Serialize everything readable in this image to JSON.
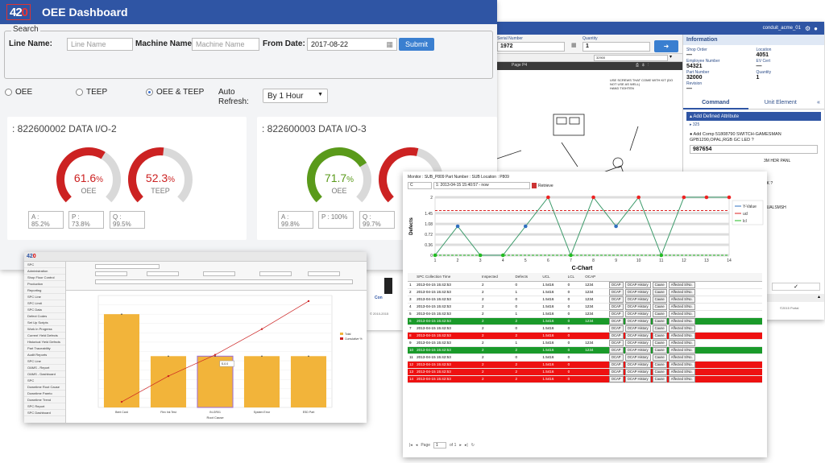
{
  "oee": {
    "logo": {
      "main": "42",
      "accent": "0"
    },
    "title": "OEE Dashboard",
    "search": {
      "legend": "Search",
      "line_label": "Line Name:",
      "line_placeholder": "Line Name",
      "machine_label": "Machine Name:",
      "machine_placeholder": "Machine Name",
      "from_label": "From Date:",
      "from_value": "2017-08-22",
      "submit": "Submit"
    },
    "radios": [
      {
        "label": "OEE",
        "checked": false
      },
      {
        "label": "TEEP",
        "checked": false
      },
      {
        "label": "OEE & TEEP",
        "checked": true
      }
    ],
    "auto_refresh_label": "Auto Refresh:",
    "auto_refresh_value": "By 1 Hour",
    "cards": [
      {
        "title": ": 822600002 DATA I/O-2",
        "gauges": [
          {
            "value": "61.6",
            "unit": "%",
            "label": "OEE",
            "fraction": 0.616,
            "color": "#cc2222"
          },
          {
            "value": "52.3",
            "unit": "%",
            "label": "TEEP",
            "fraction": 0.523,
            "color": "#cc2222"
          }
        ],
        "metrics": [
          "A :\n85.2%",
          "P :\n73.8%",
          "Q :\n99.5%"
        ]
      },
      {
        "title": ": 822600003 DATA I/O-3",
        "gauges": [
          {
            "value": "71.7",
            "unit": "%",
            "label": "OEE",
            "fraction": 0.717,
            "color": "#5a9a1a"
          },
          {
            "value": "",
            "unit": "",
            "label": "",
            "fraction": 0.55,
            "color": "#cc2222"
          }
        ],
        "metrics": [
          "A :\n99.8%",
          "P : 100%",
          "Q :\n99.7%"
        ]
      }
    ]
  },
  "mes": {
    "user": "conduit_acme_01",
    "serial_label": "Serial Number",
    "serial_value": "1972",
    "quantity_label": "Quantity",
    "quantity_value": "1",
    "doc_field": "32900",
    "page_label": "Page",
    "page_value": "P4",
    "doc_note": "USE SCREWS THAT COME WITH KIT (DO NOT USE AS WELL)\nHAND TIGHTEN",
    "info_title": "Information",
    "info": [
      {
        "k": "Shop Order",
        "v": "—"
      },
      {
        "k": "Location",
        "v": "4051"
      },
      {
        "k": "Employee Number",
        "v": "54321"
      },
      {
        "k": "EV Cert",
        "v": "—"
      },
      {
        "k": "Part Number",
        "v": "32000"
      },
      {
        "k": "Quantity",
        "v": "1"
      },
      {
        "k": "Revision",
        "v": "—"
      }
    ],
    "tab_command": "Command",
    "tab_unit": "Unit Element",
    "add_attr": "Add Defined Attribute",
    "attr_item": "325",
    "add_comp": "Add Comp 51808790 SWITCH-GAMESMAN GPB1290,OPAL,RGB GC LED ?",
    "comp_value": "987654",
    "frag1": "3M HDR PANL",
    "frag2": "CK ?",
    "frag3": "DUALSMSH",
    "footer": "©2015 Portal",
    "left_footer": "© 2010-2015"
  },
  "pareto": {
    "logo_main": "42",
    "logo_accent": "0",
    "tree": [
      "SPC",
      "Administration",
      "Shop Floor Control",
      "Production",
      "Reporting",
      "SPC Line",
      "SPC Limit",
      "SPC Data",
      "Defect Codes",
      "Set Up Scripts",
      "Work in Progress",
      "Current Yield Defects",
      "Historical Yield Defects",
      "Part Traceability",
      "Audit Reports",
      "SPC Line",
      "OAMS - Report",
      "OAMS - Dashboard",
      "SPC",
      "Downtime Root Cause",
      "Downtime Pareto",
      "Downtime Trend",
      "SPC Report",
      "SPC Dashboard"
    ],
    "tooltip": "S-0.0",
    "legend": [
      "Total",
      "Cumulative %"
    ],
    "xlabel": "Root Cause"
  },
  "cchart": {
    "monitor_line": "Monitor : SUB_P809   Part Number : SUB   Location : P809",
    "select_c": "C",
    "range": "1: 2013-04-15 15:40:57 - now",
    "retrieve": "Retrieve",
    "legend": [
      "Y-Value",
      "ucl",
      "lcl"
    ],
    "title": "C-Chart",
    "ylabel": "Defects",
    "columns": [
      "SPC Collection Time",
      "Inspected",
      "Defects",
      "UCL",
      "LCL",
      "OCAP"
    ],
    "rows": [
      {
        "n": "1",
        "time": "2013-04-15 15:42:53",
        "insp": "2",
        "def": "0",
        "ucl": "1.5416",
        "lcl": "0",
        "ocap": "1234",
        "style": ""
      },
      {
        "n": "2",
        "time": "2013-04-15 15:42:53",
        "insp": "2",
        "def": "1",
        "ucl": "1.5416",
        "lcl": "0",
        "ocap": "1234",
        "style": ""
      },
      {
        "n": "3",
        "time": "2013-04-15 15:42:53",
        "insp": "2",
        "def": "0",
        "ucl": "1.5416",
        "lcl": "0",
        "ocap": "1234",
        "style": ""
      },
      {
        "n": "4",
        "time": "2013-04-15 15:42:53",
        "insp": "2",
        "def": "0",
        "ucl": "1.5416",
        "lcl": "0",
        "ocap": "1234",
        "style": ""
      },
      {
        "n": "5",
        "time": "2013-04-15 15:42:53",
        "insp": "2",
        "def": "1",
        "ucl": "1.5416",
        "lcl": "0",
        "ocap": "1234",
        "style": ""
      },
      {
        "n": "6",
        "time": "2013-04-15 15:42:53",
        "insp": "2",
        "def": "2",
        "ucl": "1.5416",
        "lcl": "0",
        "ocap": "1234",
        "style": "green"
      },
      {
        "n": "7",
        "time": "2013-04-15 15:42:53",
        "insp": "2",
        "def": "0",
        "ucl": "1.5416",
        "lcl": "0",
        "ocap": "",
        "style": ""
      },
      {
        "n": "8",
        "time": "2013-04-15 15:42:53",
        "insp": "2",
        "def": "2",
        "ucl": "1.5416",
        "lcl": "0",
        "ocap": "",
        "style": "red"
      },
      {
        "n": "9",
        "time": "2013-04-15 15:42:53",
        "insp": "2",
        "def": "1",
        "ucl": "1.5416",
        "lcl": "0",
        "ocap": "1234",
        "style": ""
      },
      {
        "n": "10",
        "time": "2013-04-15 15:42:53",
        "insp": "2",
        "def": "2",
        "ucl": "1.5416",
        "lcl": "0",
        "ocap": "1234",
        "style": "green"
      },
      {
        "n": "11",
        "time": "2013-04-15 15:42:53",
        "insp": "2",
        "def": "0",
        "ucl": "1.5416",
        "lcl": "0",
        "ocap": "",
        "style": ""
      },
      {
        "n": "12",
        "time": "2013-04-15 15:42:53",
        "insp": "2",
        "def": "2",
        "ucl": "1.5416",
        "lcl": "0",
        "ocap": "",
        "style": "red"
      },
      {
        "n": "13",
        "time": "2013-04-15 15:42:53",
        "insp": "2",
        "def": "2",
        "ucl": "1.5416",
        "lcl": "0",
        "ocap": "",
        "style": "red"
      },
      {
        "n": "14",
        "time": "2013-04-15 15:42:53",
        "insp": "2",
        "def": "2",
        "ucl": "1.5416",
        "lcl": "0",
        "ocap": "",
        "style": "red"
      }
    ],
    "actions": [
      "OCAP",
      "OCAP History",
      "Cause",
      "Affected S/No."
    ],
    "pager_page": "Page",
    "pager_value": "1",
    "pager_of": "of 1"
  },
  "chart_data": [
    {
      "type": "line",
      "title": "C-Chart",
      "xlabel": "",
      "ylabel": "Defects",
      "x": [
        1,
        2,
        3,
        4,
        5,
        6,
        7,
        8,
        9,
        10,
        11,
        12,
        13,
        14
      ],
      "series": [
        {
          "name": "Y-Value",
          "values": [
            0,
            1,
            0,
            0,
            1,
            2,
            0,
            2,
            1,
            2,
            0,
            2,
            2,
            2
          ]
        },
        {
          "name": "ucl",
          "values": [
            1.5416,
            1.5416,
            1.5416,
            1.5416,
            1.5416,
            1.5416,
            1.5416,
            1.5416,
            1.5416,
            1.5416,
            1.5416,
            1.5416,
            1.5416,
            1.5416
          ]
        },
        {
          "name": "lcl",
          "values": [
            0,
            0,
            0,
            0,
            0,
            0,
            0,
            0,
            0,
            0,
            0,
            0,
            0,
            0
          ]
        }
      ],
      "yticks": [
        "0",
        "0.36",
        "0.72",
        "1.08",
        "1.45",
        "2"
      ],
      "ylim": [
        0,
        2
      ]
    },
    {
      "type": "bar",
      "title": "",
      "xlabel": "Root Cause",
      "categories": [
        "Bent Card",
        "Flex Ink Test",
        "IN-GR01",
        "System Error",
        "ESD Part"
      ],
      "series": [
        {
          "name": "Total",
          "values": [
            2,
            1.1,
            1.1,
            1.1,
            1.1
          ]
        },
        {
          "name": "Cumulative %",
          "values": [
            5,
            28,
            47,
            70,
            95
          ]
        }
      ],
      "ylim": [
        0,
        2.4
      ],
      "y2lim": [
        0,
        100
      ]
    }
  ]
}
